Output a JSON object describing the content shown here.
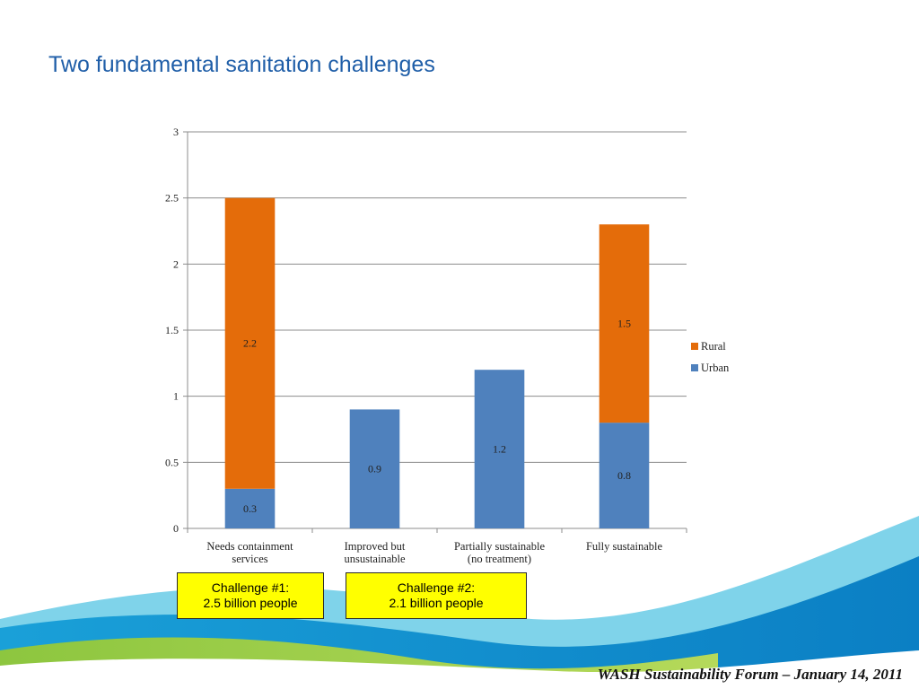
{
  "slide": {
    "title": "Two fundamental sanitation challenges",
    "footer": "WASH Sustainability Forum – January 14, 2011"
  },
  "callouts": [
    {
      "line1": "Challenge #1:",
      "line2": "2.5 billion people"
    },
    {
      "line1": "Challenge #2:",
      "line2": "2.1 billion people"
    }
  ],
  "chart_data": {
    "type": "bar",
    "stacked": true,
    "categories": [
      [
        "Needs containment",
        "services"
      ],
      [
        "Improved but",
        "unsustainable"
      ],
      [
        "Partially sustainable",
        "(no treatment)"
      ],
      [
        "Fully sustainable"
      ]
    ],
    "series": [
      {
        "name": "Urban",
        "color": "#4f81bd",
        "values": [
          0.3,
          0.9,
          1.2,
          0.8
        ],
        "labels": [
          "0.3",
          "0.9",
          "1.2",
          "0.8"
        ]
      },
      {
        "name": "Rural",
        "color": "#e46c0a",
        "values": [
          2.2,
          0,
          0,
          1.5
        ],
        "labels": [
          "2.2",
          "",
          "",
          "1.5"
        ]
      }
    ],
    "ylim": [
      0,
      3
    ],
    "yticks": [
      0,
      0.5,
      1,
      1.5,
      2,
      2.5,
      3
    ],
    "ytick_labels": [
      "0",
      "0.5",
      "1",
      "1.5",
      "2",
      "2.5",
      "3"
    ],
    "grid": true,
    "legend": {
      "position": "right",
      "order": [
        "Rural",
        "Urban"
      ]
    }
  }
}
